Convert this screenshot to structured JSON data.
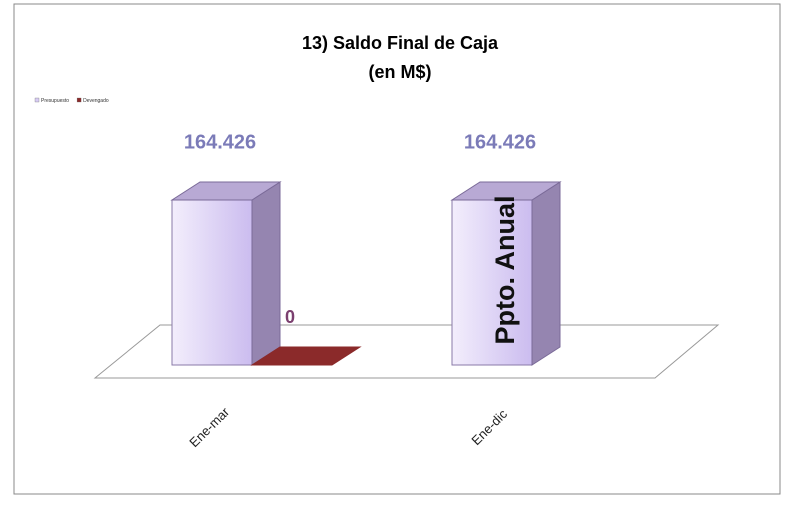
{
  "chart_data": {
    "type": "bar3d",
    "title": "13)  Saldo Final de Caja",
    "subtitle": "(en M$)",
    "categories": [
      "Ene-mar",
      "Ene-dic"
    ],
    "series": [
      {
        "name": "Presupuesto",
        "color": "#d8ccf4",
        "values": [
          164426,
          164426
        ],
        "value_labels": [
          "164.426",
          "164.426"
        ]
      },
      {
        "name": "Devengado",
        "color": "#8b2a2a",
        "values": [
          0,
          null
        ]
      }
    ],
    "annotation": "Ppto. Anual",
    "legend": "top-left"
  }
}
